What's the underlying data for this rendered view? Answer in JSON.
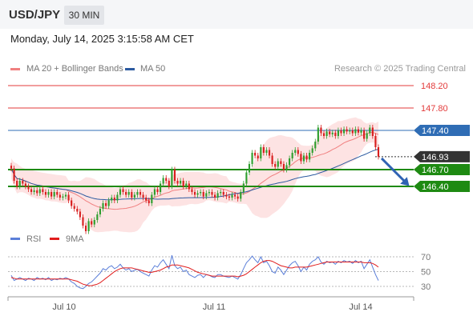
{
  "header": {
    "symbol": "USD/JPY",
    "timeframe": "30 MIN",
    "datetime": "Monday, July 14, 2025 3:15:58 AM CET"
  },
  "legend": {
    "ma20_label": "MA 20 + Bollinger Bands",
    "ma50_label": "MA 50",
    "rsi_label": "RSI",
    "rsi_ma_label": "9MA",
    "credit": "Research © 2025 Trading Central"
  },
  "colors": {
    "bull": "#2e9e2e",
    "bear": "#d81e1e",
    "ma20": "#f08080",
    "ma50": "#2c5aa0",
    "band_fill": "#fde3e3",
    "resistance": "#e33b3b",
    "pivot": "#2f6db5",
    "support": "#1e8a12",
    "current": "#333333",
    "rsi": "#5b7fd9",
    "rsi_ma": "#e11d1d"
  },
  "chart_data": [
    {
      "type": "candlestick",
      "title": "USD/JPY 30 MIN",
      "x_tick_labels": [
        "Jul 10",
        "Jul 11",
        "Jul 14"
      ],
      "y_price_range": [
        145.4,
        148.35
      ],
      "grid": false,
      "levels": [
        {
          "label": "148.20",
          "value": 148.2,
          "kind": "resistance"
        },
        {
          "label": "147.80",
          "value": 147.8,
          "kind": "resistance"
        },
        {
          "label": "147.40",
          "value": 147.4,
          "kind": "pivot"
        },
        {
          "label": "146.93",
          "value": 146.93,
          "kind": "current"
        },
        {
          "label": "146.70",
          "value": 146.7,
          "kind": "support"
        },
        {
          "label": "146.40",
          "value": 146.4,
          "kind": "support"
        }
      ],
      "projection": {
        "from": 146.93,
        "to": 146.4,
        "direction": "down"
      },
      "closes": [
        146.72,
        146.5,
        146.4,
        146.5,
        146.45,
        146.4,
        146.35,
        146.3,
        146.33,
        146.28,
        146.35,
        146.3,
        146.25,
        146.3,
        146.22,
        146.3,
        146.25,
        146.2,
        146.22,
        146.25,
        146.15,
        146.05,
        146.0,
        145.95,
        145.85,
        145.7,
        145.6,
        145.78,
        145.72,
        145.8,
        145.9,
        146.0,
        146.1,
        146.05,
        146.15,
        146.2,
        146.15,
        146.25,
        146.35,
        146.3,
        146.25,
        146.3,
        146.2,
        146.25,
        146.3,
        146.25,
        146.2,
        146.15,
        146.1,
        146.25,
        146.35,
        146.3,
        146.45,
        146.55,
        146.5,
        146.4,
        146.7,
        146.5,
        146.45,
        146.5,
        146.4,
        146.45,
        146.35,
        146.3,
        146.25,
        146.28,
        146.3,
        146.22,
        146.28,
        146.3,
        146.25,
        146.2,
        146.28,
        146.3,
        146.25,
        146.22,
        146.2,
        146.25,
        146.22,
        146.18,
        146.3,
        146.45,
        146.65,
        146.8,
        147.0,
        146.95,
        146.9,
        147.1,
        147.0,
        147.05,
        146.95,
        146.8,
        146.75,
        146.85,
        146.8,
        146.7,
        146.78,
        146.9,
        147.0,
        147.05,
        146.98,
        146.85,
        146.95,
        146.88,
        147.0,
        147.08,
        147.2,
        147.45,
        147.35,
        147.3,
        147.38,
        147.33,
        147.36,
        147.3,
        147.4,
        147.35,
        147.42,
        147.38,
        147.4,
        147.35,
        147.42,
        147.36,
        147.4,
        147.25,
        147.35,
        147.45,
        147.3,
        147.1,
        146.93
      ],
      "series": [
        {
          "name": "MA 20 + Bollinger Bands"
        },
        {
          "name": "MA 50"
        }
      ]
    },
    {
      "type": "line",
      "y_tick_labels": [
        "70",
        "50",
        "30"
      ],
      "ylim": [
        20,
        80
      ],
      "series": [
        {
          "name": "RSI",
          "values": [
            45,
            38,
            40,
            42,
            40,
            38,
            41,
            40,
            38,
            42,
            40,
            41,
            39,
            42,
            38,
            40,
            39,
            41,
            40,
            42,
            40,
            36,
            34,
            30,
            28,
            27,
            30,
            34,
            36,
            40,
            44,
            48,
            54,
            52,
            56,
            58,
            54,
            56,
            60,
            55,
            52,
            54,
            50,
            52,
            53,
            50,
            48,
            46,
            44,
            52,
            58,
            56,
            62,
            66,
            60,
            54,
            72,
            58,
            54,
            56,
            50,
            52,
            46,
            44,
            42,
            45,
            46,
            42,
            46,
            45,
            43,
            42,
            46,
            46,
            44,
            43,
            42,
            44,
            42,
            40,
            46,
            54,
            62,
            66,
            71,
            66,
            62,
            70,
            62,
            64,
            58,
            50,
            48,
            56,
            52,
            46,
            52,
            58,
            62,
            64,
            58,
            50,
            56,
            52,
            60,
            64,
            66,
            70,
            63,
            60,
            64,
            62,
            63,
            60,
            64,
            62,
            65,
            63,
            64,
            61,
            65,
            62,
            64,
            54,
            60,
            66,
            56,
            46,
            38
          ]
        },
        {
          "name": "9MA",
          "values": [
            42,
            41,
            40,
            40,
            40,
            40,
            40,
            40,
            40,
            40,
            40,
            40,
            40,
            40,
            40,
            40,
            40,
            40,
            40,
            40,
            40,
            39,
            38,
            37,
            35,
            33,
            32,
            31,
            31,
            32,
            33,
            35,
            38,
            41,
            44,
            47,
            50,
            52,
            54,
            55,
            55,
            55,
            55,
            54,
            53,
            52,
            51,
            50,
            49,
            49,
            50,
            51,
            52,
            54,
            56,
            57,
            59,
            59,
            59,
            58,
            57,
            56,
            55,
            53,
            51,
            49,
            48,
            47,
            46,
            45,
            44,
            44,
            44,
            44,
            44,
            44,
            44,
            44,
            44,
            43,
            44,
            45,
            47,
            50,
            53,
            56,
            59,
            62,
            64,
            65,
            65,
            64,
            62,
            60,
            58,
            57,
            56,
            55,
            55,
            56,
            56,
            56,
            56,
            56,
            57,
            58,
            59,
            60,
            61,
            62,
            63,
            63,
            63,
            63,
            63,
            63,
            63,
            63,
            63,
            63,
            63,
            63,
            63,
            62,
            62,
            62,
            61,
            59,
            56
          ]
        }
      ]
    }
  ]
}
